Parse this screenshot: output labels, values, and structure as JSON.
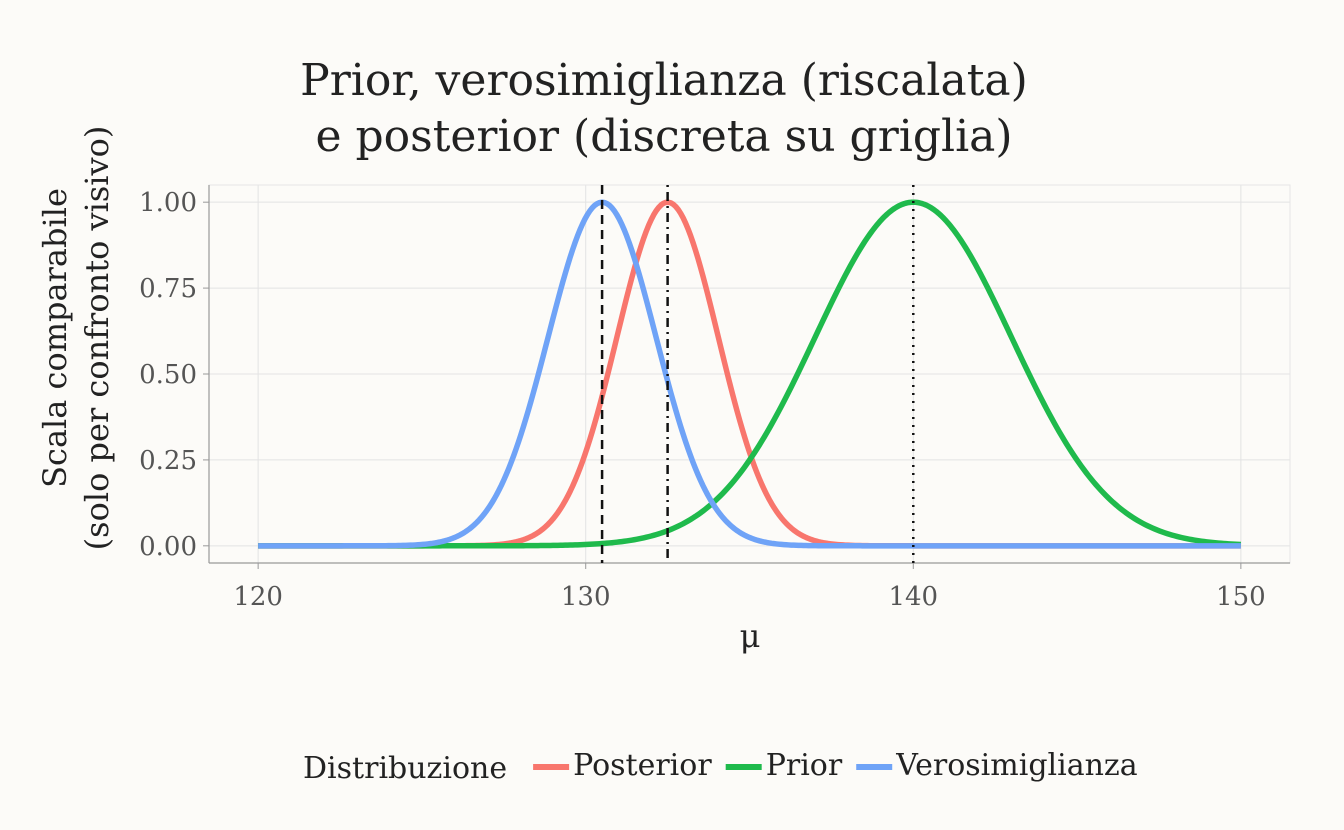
{
  "chart_data": {
    "type": "line",
    "title_lines": [
      "Prior, verosimiglianza (riscalata)",
      "e posterior (discreta su griglia)"
    ],
    "xlabel": "μ",
    "ylabel_lines": [
      "Scala comparabile",
      "(solo per confronto visivo)"
    ],
    "xlim": [
      118.5,
      151.5
    ],
    "ylim": [
      -0.05,
      1.05
    ],
    "x_ticks": [
      120,
      130,
      140,
      150
    ],
    "y_ticks": [
      0,
      0.25,
      0.5,
      0.75,
      1
    ],
    "y_tick_labels": [
      "0.00",
      "0.25",
      "0.50",
      "0.75",
      "1.00"
    ],
    "grid": true,
    "legend": {
      "title": "Distribuzione",
      "placement": "bottom"
    },
    "series": [
      {
        "name": "Posterior",
        "color": "#f8766d",
        "mean": 132.5,
        "sd": 1.55
      },
      {
        "name": "Prior",
        "color": "#1fba4c",
        "mean": 140.0,
        "sd": 3.0
      },
      {
        "name": "Verosimiglianza",
        "color": "#6fa3f7",
        "mean": 130.5,
        "sd": 1.65
      }
    ],
    "x_range": [
      120,
      150
    ],
    "reference_lines": [
      {
        "x": 130.5,
        "style": "dashed"
      },
      {
        "x": 132.5,
        "style": "dotdash"
      },
      {
        "x": 140.0,
        "style": "dotted"
      }
    ]
  }
}
